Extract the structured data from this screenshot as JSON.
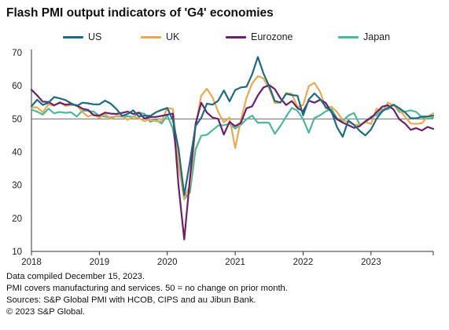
{
  "title": "Flash PMI output indicators of 'G4' economies",
  "footnotes": [
    "Data compiled December 15, 2023.",
    "PMI covers manufacturing and services. 50 = no change on prior month.",
    "Sources: S&P Global PMI with HCOB, CIPS and au Jibun Bank.",
    "© 2023 S&P Global."
  ],
  "chart_data": {
    "type": "line",
    "title": "Flash PMI output indicators of 'G4' economies",
    "xlabel": "",
    "ylabel": "",
    "ylim": [
      10,
      70
    ],
    "yticks": [
      10,
      20,
      30,
      40,
      50,
      60,
      70
    ],
    "xlim": [
      "2018-01",
      "2023-12"
    ],
    "xticks": [
      "2018",
      "2019",
      "2020",
      "2021",
      "2022",
      "2023"
    ],
    "reference_line": 50,
    "grid": false,
    "legend_position": "top",
    "series": [
      {
        "name": "US",
        "color": "#1c6b82",
        "values": [
          53.8,
          55.8,
          54.2,
          54.9,
          56.6,
          56.2,
          55.7,
          54.7,
          53.9,
          54.9,
          54.7,
          54.4,
          54.4,
          55.5,
          54.6,
          53.0,
          50.9,
          51.5,
          52.6,
          50.7,
          51.0,
          50.9,
          52.0,
          52.7,
          53.3,
          49.6,
          40.9,
          27.0,
          37.0,
          47.9,
          50.3,
          54.6,
          54.3,
          55.5,
          58.6,
          55.3,
          58.7,
          59.5,
          59.7,
          63.5,
          68.7,
          63.7,
          59.9,
          55.4,
          55.0,
          57.6,
          57.2,
          57.0,
          51.1,
          55.9,
          57.7,
          56.0,
          53.6,
          52.3,
          47.5,
          44.6,
          49.5,
          48.2,
          46.4,
          45.0,
          46.8,
          50.1,
          52.3,
          53.4,
          54.3,
          53.2,
          52.0,
          50.2,
          50.2,
          50.7,
          50.7,
          51.0
        ]
      },
      {
        "name": "UK",
        "color": "#eba94e",
        "values": [
          53.5,
          53.5,
          52.0,
          54.4,
          54.0,
          55.1,
          53.9,
          54.2,
          54.1,
          52.1,
          50.7,
          51.4,
          50.3,
          51.5,
          50.0,
          50.9,
          50.9,
          49.7,
          50.7,
          50.2,
          49.3,
          50.0,
          49.3,
          49.3,
          53.3,
          53.0,
          36.0,
          26.0,
          30.0,
          47.7,
          57.0,
          59.1,
          56.5,
          52.1,
          49.0,
          50.4,
          41.2,
          49.6,
          56.4,
          60.7,
          62.9,
          62.2,
          59.2,
          54.8,
          54.9,
          57.8,
          57.6,
          53.6,
          54.2,
          59.9,
          60.9,
          58.2,
          53.1,
          53.7,
          52.1,
          49.6,
          49.1,
          48.2,
          48.2,
          49.0,
          48.5,
          53.1,
          52.2,
          54.9,
          54.0,
          52.8,
          50.7,
          48.6,
          48.5,
          48.7,
          50.7,
          51.7
        ]
      },
      {
        "name": "Eurozone",
        "color": "#6c1e6f",
        "values": [
          58.8,
          57.1,
          55.2,
          55.1,
          54.1,
          54.9,
          54.3,
          54.5,
          54.1,
          53.1,
          52.7,
          51.1,
          51.0,
          51.9,
          51.6,
          51.5,
          51.8,
          52.2,
          51.5,
          51.9,
          50.1,
          50.6,
          50.6,
          50.9,
          51.3,
          51.6,
          29.7,
          13.6,
          31.9,
          48.5,
          54.9,
          51.9,
          50.4,
          50.0,
          45.3,
          49.1,
          47.8,
          48.8,
          53.2,
          53.8,
          57.1,
          59.5,
          60.2,
          59.0,
          56.2,
          54.2,
          55.4,
          53.3,
          52.3,
          55.5,
          54.9,
          55.8,
          54.8,
          52.0,
          49.9,
          48.9,
          48.1,
          47.3,
          47.8,
          49.3,
          50.3,
          52.0,
          53.7,
          54.1,
          52.8,
          49.9,
          48.6,
          46.7,
          47.2,
          46.5,
          47.6,
          47.0
        ]
      },
      {
        "name": "Japan",
        "color": "#4cb89a",
        "values": [
          52.8,
          52.2,
          51.3,
          53.1,
          51.7,
          52.1,
          51.8,
          52.0,
          50.7,
          52.5,
          52.4,
          52.2,
          50.9,
          50.7,
          50.4,
          50.8,
          50.7,
          50.8,
          50.6,
          51.9,
          51.5,
          49.1,
          49.8,
          48.6,
          51.1,
          47.0,
          36.2,
          25.8,
          27.8,
          40.8,
          44.9,
          45.2,
          46.6,
          48.0,
          48.1,
          48.5,
          47.1,
          48.2,
          49.9,
          51.0,
          48.8,
          48.9,
          48.8,
          45.5,
          47.9,
          50.7,
          53.3,
          52.5,
          49.9,
          45.8,
          50.3,
          51.1,
          52.3,
          53.0,
          50.2,
          49.4,
          51.0,
          51.8,
          48.3,
          48.9,
          50.7,
          51.1,
          52.9,
          52.9,
          54.3,
          52.1,
          52.2,
          52.6,
          52.1,
          50.5,
          50.0,
          50.4
        ]
      }
    ]
  }
}
